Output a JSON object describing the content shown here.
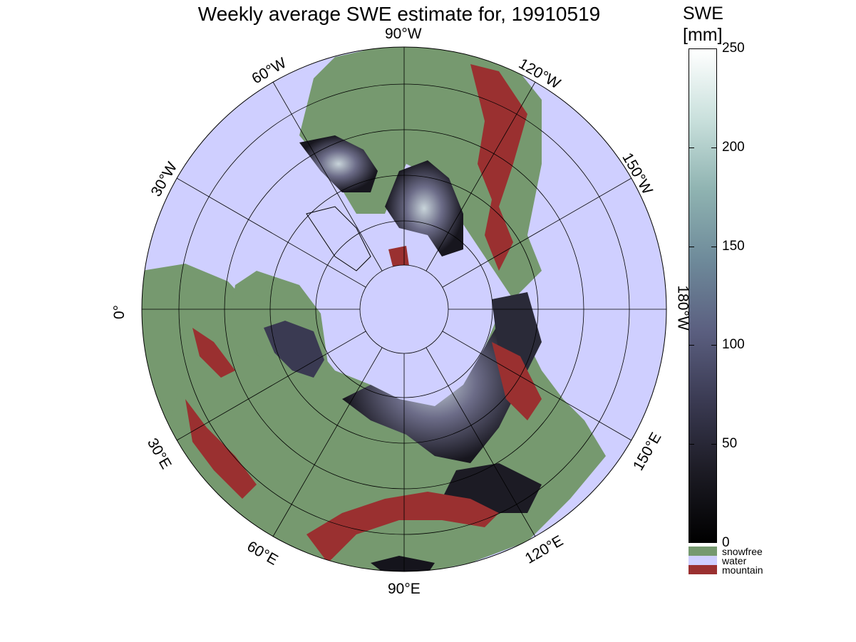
{
  "title": "Weekly average SWE estimate for, 19910519",
  "colorbar": {
    "title_line1": "SWE",
    "title_line2": "[mm]",
    "ticks": [
      "0",
      "50",
      "100",
      "150",
      "200",
      "250"
    ],
    "colors_top_to_bottom": [
      "#ffffff",
      "#c9e0dc",
      "#8fb3b1",
      "#6e8a9a",
      "#5b5f80",
      "#3a3a52",
      "#1c1b24",
      "#000000"
    ]
  },
  "legend": [
    {
      "label": "snowfree",
      "color": "#76996f"
    },
    {
      "label": "water",
      "color": "#cfcfff"
    },
    {
      "label": "mountain",
      "color": "#9a3030"
    }
  ],
  "longitude_labels": {
    "top": "90°W",
    "w60": "60°W",
    "w30": "30°W",
    "w120": "120°W",
    "w150": "150°W",
    "w180": "180°W",
    "zero": "0°",
    "e30": "30°E",
    "e60": "60°E",
    "e90": "90°E",
    "e120": "120°E",
    "e150": "150°E"
  },
  "map_colors": {
    "ocean": "#cfcfff",
    "land": "#76996f",
    "mountain": "#9a3030",
    "snow_dark": "#15141c",
    "snow_mid": "#6a6a86",
    "snow_light": "#d8e4e8"
  }
}
